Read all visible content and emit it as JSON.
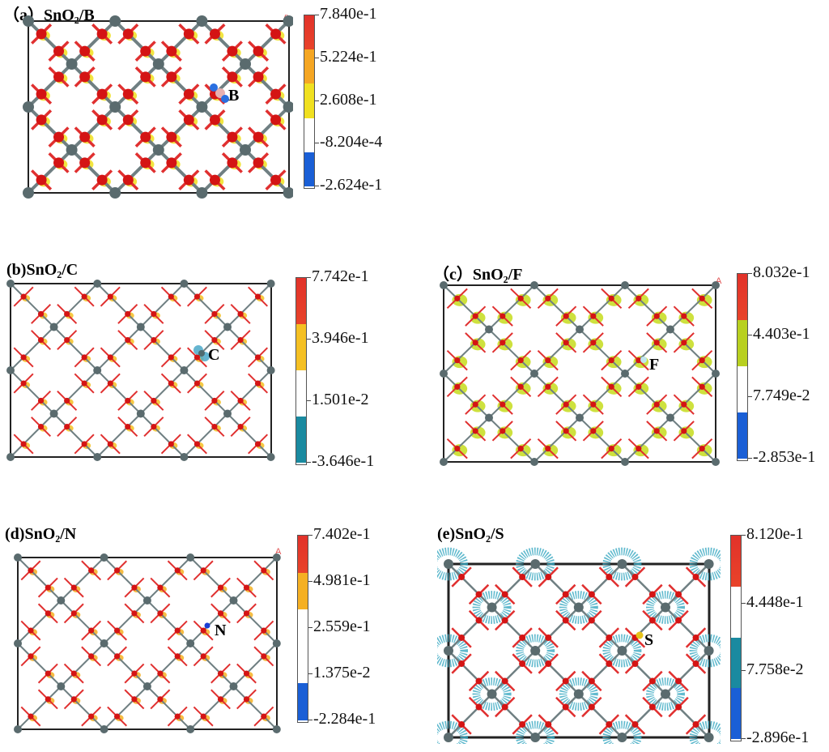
{
  "panels": [
    {
      "id": "a",
      "title": "（a）SnO₂/B",
      "dopant_label": "B",
      "colorbar": {
        "ticks": [
          "7.840e-1",
          "5.224e-1",
          "2.608e-1",
          "-8.204e-4",
          "-2.624e-1"
        ],
        "band_colors": [
          "#e8432a",
          "#f5a623",
          "#f0e020",
          "#ffffff",
          "#1a5fd6"
        ]
      }
    },
    {
      "id": "b",
      "title": "(b)SnO₂/C",
      "dopant_label": "C",
      "colorbar": {
        "ticks": [
          "7.742e-1",
          "3.946e-1",
          "1.501e-2",
          "-3.646e-1"
        ],
        "band_colors": [
          "#e8432a",
          "#f5c023",
          "#ffffff",
          "#1a8aa0"
        ]
      }
    },
    {
      "id": "c",
      "title": "（c）SnO₂/F",
      "dopant_label": "F",
      "colorbar": {
        "ticks": [
          "8.032e-1",
          "4.403e-1",
          "7.749e-2",
          "-2.853e-1"
        ],
        "band_colors": [
          "#e8432a",
          "#b8d020",
          "#ffffff",
          "#1a5fd6"
        ]
      }
    },
    {
      "id": "d",
      "title": "(d)SnO₂/N",
      "dopant_label": "N",
      "colorbar": {
        "ticks": [
          "7.402e-1",
          "4.981e-1",
          "2.559e-1",
          "1.375e-2",
          "-2.284e-1"
        ],
        "band_colors": [
          "#e8432a",
          "#f5b023",
          "#ffffff",
          "#ffffff",
          "#1a5fd6"
        ]
      }
    },
    {
      "id": "e",
      "title": "(e)SnO₂/S",
      "dopant_label": "S",
      "colorbar": {
        "ticks": [
          "8.120e-1",
          "4.448e-1",
          "7.758e-2",
          "-2.896e-1"
        ],
        "band_colors": [
          "#e8432a",
          "#ffffff",
          "#1a8aa0",
          "#1a5fd6"
        ]
      }
    }
  ],
  "colors": {
    "sn": "#5a6b6e",
    "o": "#d41414",
    "bond_sn": "#6f7f82",
    "bond_o": "#e03030",
    "iso_yellow": "#f0e020",
    "iso_cyan": "#39a9c2",
    "dopant_b": "#e7b0b0",
    "dopant_c": "#4f6a6e",
    "dopant_f": "#bfe6f0",
    "dopant_n": "#1a3fd6",
    "dopant_s": "#e6c21a"
  },
  "corner_mark": "A"
}
